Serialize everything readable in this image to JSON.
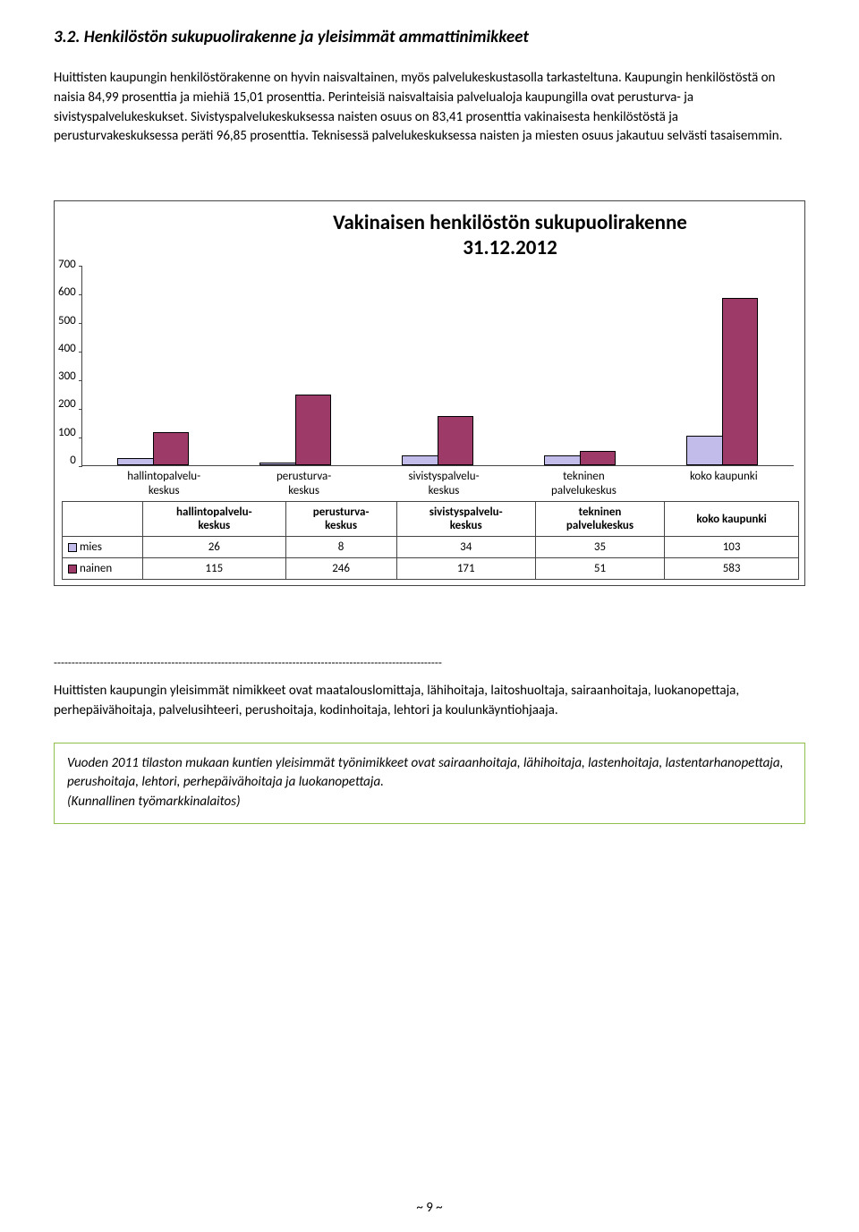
{
  "heading": "3.2. Henkilöstön sukupuolirakenne ja yleisimmät ammattinimikkeet",
  "para1": "Huittisten kaupungin henkilöstörakenne on hyvin naisvaltainen, myös palvelukeskustasolla tarkasteltuna. Kaupungin henkilöstöstä on naisia 84,99 prosenttia ja miehiä 15,01 prosenttia. Perinteisiä naisvaltaisia palvelualoja kaupungilla ovat perusturva- ja sivistyspalvelukeskukset. Sivistyspalvelukeskuksessa naisten osuus on 83,41 prosenttia vakinaisesta henkilöstöstä ja perusturvakeskuksessa peräti 96,85 prosenttia. Teknisessä palvelukeskuksessa naisten ja miesten osuus jakautuu selvästi tasaisemmin.",
  "chart": {
    "title_l1": "Vakinaisen henkilöstön sukupuolirakenne",
    "title_l2": "31.12.2012",
    "ymax": 700,
    "yticks": [
      "700",
      "600",
      "500",
      "400",
      "300",
      "200",
      "100",
      "0"
    ],
    "categories": [
      {
        "label_l1": "hallintopalvelu-",
        "label_l2": "keskus"
      },
      {
        "label_l1": "perusturva-",
        "label_l2": "keskus"
      },
      {
        "label_l1": "sivistyspalvelu-",
        "label_l2": "keskus"
      },
      {
        "label_l1": "tekninen",
        "label_l2": "palvelukeskus"
      },
      {
        "label_l1": "koko kaupunki",
        "label_l2": ""
      }
    ],
    "series": {
      "mies": {
        "label": "mies",
        "color": "#c2bceb",
        "values": [
          26,
          8,
          34,
          35,
          103
        ]
      },
      "nainen": {
        "label": "nainen",
        "color": "#9e3a68",
        "values": [
          115,
          246,
          171,
          51,
          583
        ]
      }
    }
  },
  "divider": "-------------------------------------------------------------------------------------------------------------",
  "para2": "Huittisten kaupungin yleisimmät nimikkeet ovat maatalouslomittaja, lähihoitaja, laitoshuoltaja, sairaanhoitaja, luokanopettaja, perhepäivähoitaja, palvelusihteeri, perushoitaja, kodinhoitaja, lehtori ja koulunkäyntiohjaaja.",
  "quote_l1": "Vuoden 2011 tilaston mukaan kuntien yleisimmät työnimikkeet ovat sairaanhoitaja, lähihoitaja, lastenhoitaja, lastentarhanopettaja, perushoitaja, lehtori, perhepäivähoitaja ja luokanopettaja.",
  "quote_l2": "(Kunnallinen työmarkkinalaitos)",
  "page": "~ 9 ~"
}
